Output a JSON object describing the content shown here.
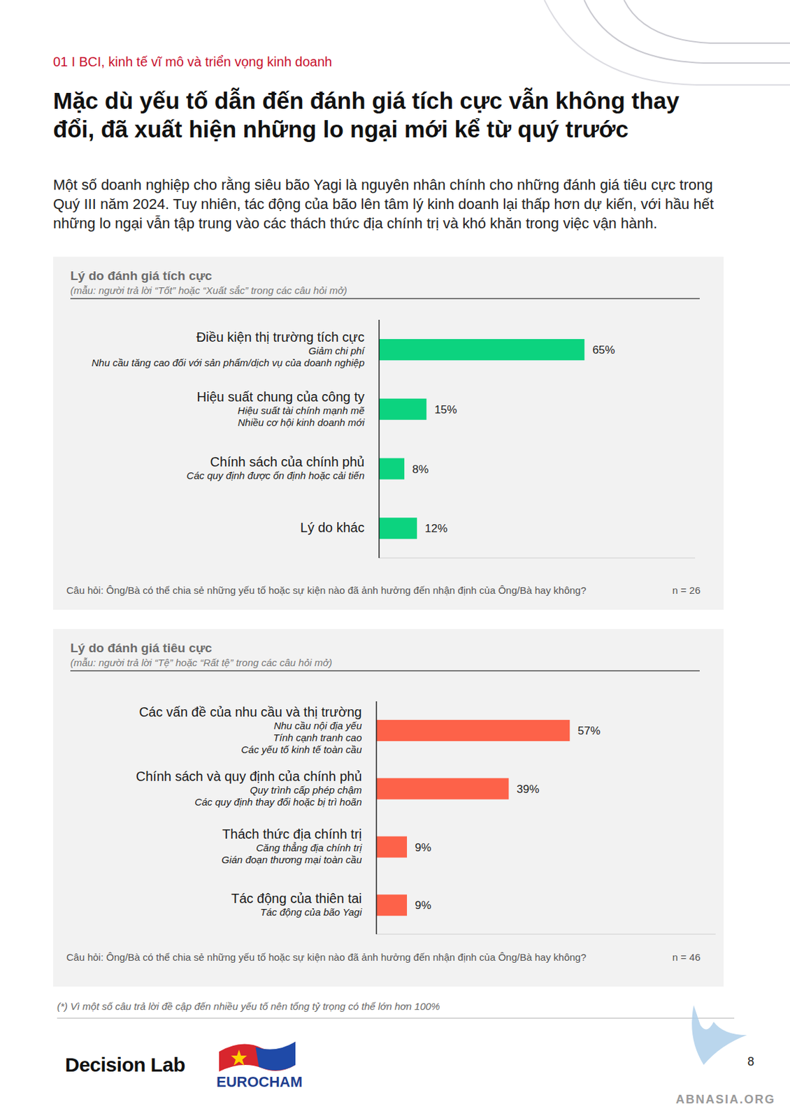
{
  "header": {
    "section": "01 I BCI, kinh tế vĩ mô và triển vọng kinh doanh",
    "title": "Mặc dù yếu tố dẫn đến đánh giá tích cực vẫn không thay đổi, đã xuất hiện những lo ngại mới kể từ quý trước",
    "paragraph": "Một số doanh nghiệp cho rằng siêu bão Yagi là nguyên nhân chính cho những đánh giá tiêu cực trong Quý III năm 2024. Tuy nhiên, tác động của bão lên tâm lý kinh doanh lại thấp hơn dự kiến, với hầu hết những lo ngại vẫn tập trung vào các thách thức địa chính trị và khó khăn trong việc vận hành."
  },
  "chart_data": [
    {
      "type": "bar",
      "orientation": "horizontal",
      "title": "Lý do đánh giá tích cực",
      "subtitle": "(mẫu: người trả lời “Tốt” hoặc “Xuất sắc” trong các câu hỏi mở)",
      "categories": [
        "Điều kiện thị trường tích cực",
        "Hiệu suất chung của công ty",
        "Chính sách của chính phủ",
        "Lý do khác"
      ],
      "sublabels": [
        [
          "Giảm chi phí",
          "Nhu cầu tăng cao đối với sản phẩm/dịch vụ của doanh nghiệp"
        ],
        [
          "Hiệu suất tài chính mạnh mẽ",
          "Nhiều cơ hội kinh doanh mới"
        ],
        [
          "Các quy định được ổn định hoặc cải tiến"
        ],
        []
      ],
      "values": [
        65,
        15,
        8,
        12
      ],
      "value_labels": [
        "65%",
        "15%",
        "8%",
        "12%"
      ],
      "data_labels": true,
      "color": "#0cd37f",
      "xlim": [
        0,
        100
      ],
      "tick_labels": false,
      "question": "Câu hỏi: Ông/Bà có thể chia sẻ những yếu tố hoặc sự kiện nào đã ảnh hưởng đến nhận định của Ông/Bà hay không?",
      "sample": {
        "label": "n =",
        "value": 26
      }
    },
    {
      "type": "bar",
      "orientation": "horizontal",
      "title": "Lý do đánh giá tiêu cực",
      "subtitle": "(mẫu: người trả lời “Tệ” hoặc “Rất tệ” trong các câu hỏi mở)",
      "categories": [
        "Các vấn đề của nhu cầu và thị trường",
        "Chính sách và quy định của chính phủ",
        "Thách thức địa chính trị",
        "Tác động của thiên tai"
      ],
      "sublabels": [
        [
          "Nhu cầu nội địa yếu",
          "Tính cạnh tranh cao",
          "Các yếu tố kinh tế toàn cầu"
        ],
        [
          "Quy trình cấp phép chậm",
          "Các quy định thay đổi hoặc bị trì hoãn"
        ],
        [
          "Căng thẳng địa chính trị",
          "Gián đoạn thương mại toàn cầu"
        ],
        [
          "Tác động của bão Yagi"
        ]
      ],
      "values": [
        57,
        39,
        9,
        9
      ],
      "value_labels": [
        "57%",
        "39%",
        "9%",
        "9%"
      ],
      "data_labels": true,
      "color": "#fd6249",
      "xlim": [
        0,
        100
      ],
      "tick_labels": false,
      "question": "Câu hỏi: Ông/Bà có thể chia sẻ những yếu tố hoặc sự kiện nào đã ảnh hưởng đến nhận định của Ông/Bà hay không?",
      "sample": {
        "label": "n =",
        "value": 46
      }
    }
  ],
  "footnote": "(*) Vì một số câu trả lời đề cập đến nhiều yếu tố nên tổng tỷ trọng có thể lớn hơn 100%",
  "footer": {
    "logos": [
      "Decision Lab",
      "EUROCHAM"
    ],
    "page": 8,
    "watermark": "ABNASIA.ORG"
  }
}
